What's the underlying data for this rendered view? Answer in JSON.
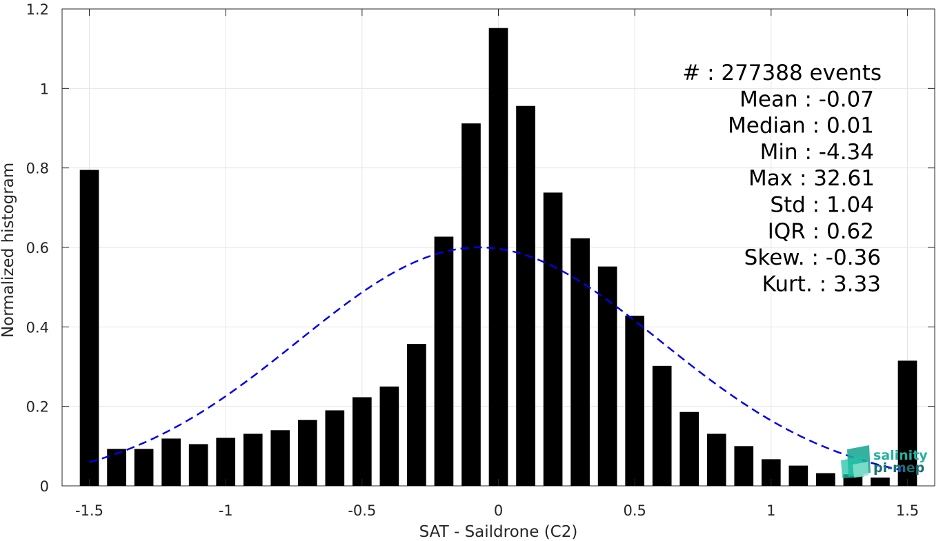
{
  "chart_data": {
    "type": "bar",
    "xlabel": "SAT - Saildrone (C2)",
    "ylabel": "Normalized histogram",
    "xlim": [
      -1.6,
      1.6
    ],
    "ylim": [
      0,
      1.2
    ],
    "grid": true,
    "x_ticks": [
      -1.5,
      -1,
      -0.5,
      0,
      0.5,
      1,
      1.5
    ],
    "x_tick_labels": [
      "-1.5",
      "-1",
      "-0.5",
      "0",
      "0.5",
      "1",
      "1.5"
    ],
    "y_ticks": [
      0,
      0.2,
      0.4,
      0.6,
      0.8,
      1,
      1.2
    ],
    "y_tick_labels": [
      "0",
      "0.2",
      "0.4",
      "0.6",
      "0.8",
      "1",
      "1.2"
    ],
    "bar_width": 0.07,
    "x": [
      -1.5,
      -1.4,
      -1.3,
      -1.2,
      -1.1,
      -1.0,
      -0.9,
      -0.8,
      -0.7,
      -0.6,
      -0.5,
      -0.4,
      -0.3,
      -0.2,
      -0.1,
      0.0,
      0.1,
      0.2,
      0.3,
      0.4,
      0.5,
      0.6,
      0.7,
      0.8,
      0.9,
      1.0,
      1.1,
      1.2,
      1.3,
      1.4,
      1.5
    ],
    "values": [
      0.795,
      0.093,
      0.093,
      0.119,
      0.105,
      0.121,
      0.131,
      0.14,
      0.166,
      0.19,
      0.223,
      0.25,
      0.357,
      0.627,
      0.912,
      1.152,
      0.956,
      0.738,
      0.623,
      0.552,
      0.428,
      0.302,
      0.186,
      0.131,
      0.1,
      0.067,
      0.051,
      0.032,
      0.029,
      0.021,
      0.315
    ],
    "fit": {
      "type": "gaussian",
      "style": "dashed",
      "color": "#0000ee",
      "mean": -0.07,
      "std": 0.665,
      "amplitude": 0.6,
      "xrange": [
        -1.5,
        1.5
      ]
    },
    "stats_lines": [
      "#  : 277388 events",
      "Mean : -0.07",
      "Median : 0.01",
      "Min : -4.34",
      "Max : 32.61",
      "Std : 1.04",
      "IQR : 0.62",
      "Skew. : -0.36",
      "Kurt. : 3.33"
    ]
  },
  "logo": {
    "line1": "salinity",
    "line2": "pi-mep",
    "color1": "#20b2a0",
    "color2": "#1a6f73"
  }
}
